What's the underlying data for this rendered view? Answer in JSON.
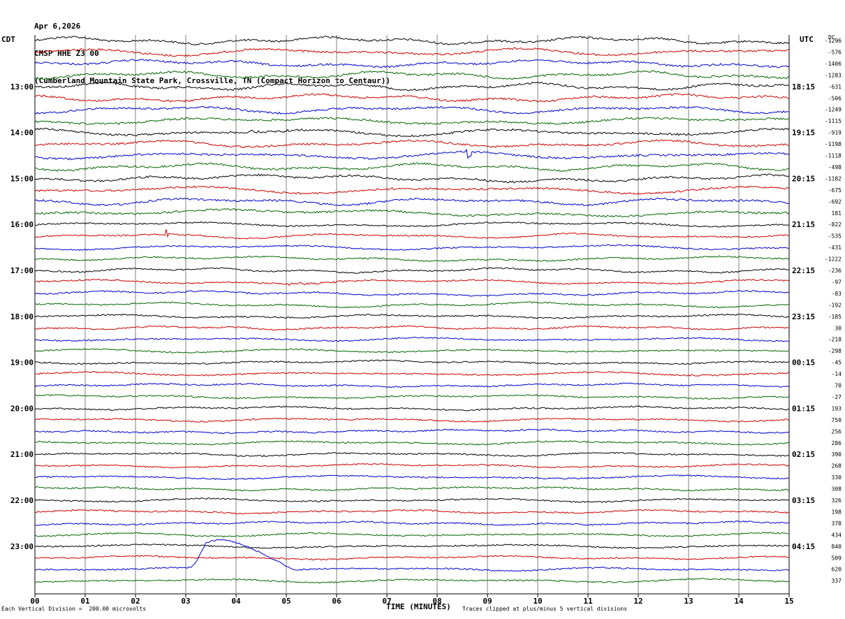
{
  "header": {
    "date": "Apr 6,2026",
    "station": "CMSP HHE Z3 00",
    "location": "(Cumberland Mountain State Park, Crossville, TN (Compact Horizon to Centaur))"
  },
  "left_zone_label": "CDT",
  "right_zone_label": "UTC",
  "dc_label": "DC",
  "left_hour_labels": [
    "13:00",
    "14:00",
    "15:00",
    "16:00",
    "17:00",
    "18:00",
    "19:00",
    "20:00",
    "21:00",
    "22:00",
    "23:00"
  ],
  "right_hour_labels": [
    "18:15",
    "19:15",
    "20:15",
    "21:15",
    "22:15",
    "23:15",
    "00:15",
    "01:15",
    "02:15",
    "03:15",
    "04:15"
  ],
  "dc_offsets": [
    "-1296",
    "-576",
    "-1406",
    "-1283",
    "-631",
    "-506",
    "-1249",
    "-1115",
    "-919",
    "-1198",
    "-1118",
    "-498",
    "-1182",
    "-675",
    "-692",
    "181",
    "-822",
    "-535",
    "-431",
    "-1222",
    "-236",
    "-97",
    "-83",
    "-192",
    "-185",
    "30",
    "-218",
    "-298",
    "-45",
    "-14",
    "70",
    "-27",
    "193",
    "750",
    "256",
    "286",
    "390",
    "268",
    "330",
    "308",
    "326",
    "198",
    "378",
    "434",
    "840",
    "509",
    "620",
    "337"
  ],
  "footer": {
    "vertical_division": "Each Vertical Division =  200.00 microvolts",
    "xlabel": "TIME (MINUTES)",
    "clip_note": "Traces clipped at plus/minus 5 vertical divisions"
  },
  "colors": {
    "trace_cycle": [
      "#000000",
      "#cc0000",
      "#0000cc",
      "#006600"
    ],
    "grid": "#808080"
  },
  "chart_data": {
    "type": "line",
    "description_type": "helicorder",
    "x_ticks": [
      "00",
      "01",
      "02",
      "03",
      "04",
      "05",
      "06",
      "07",
      "08",
      "09",
      "10",
      "11",
      "12",
      "13",
      "14",
      "15"
    ],
    "xlim": [
      0,
      15
    ],
    "trace_count": 48,
    "minutes_per_trace": 15,
    "events": [
      {
        "trace": 8,
        "minute": 4.3,
        "type": "burst"
      },
      {
        "trace": 10,
        "minute": 8.6,
        "type": "spike"
      },
      {
        "trace": 17,
        "minute": 2.6,
        "type": "spike"
      },
      {
        "trace": 21,
        "minute": 5.0,
        "type": "burst"
      },
      {
        "trace": 46,
        "minute": 3.5,
        "type": "large-pulse"
      }
    ]
  }
}
